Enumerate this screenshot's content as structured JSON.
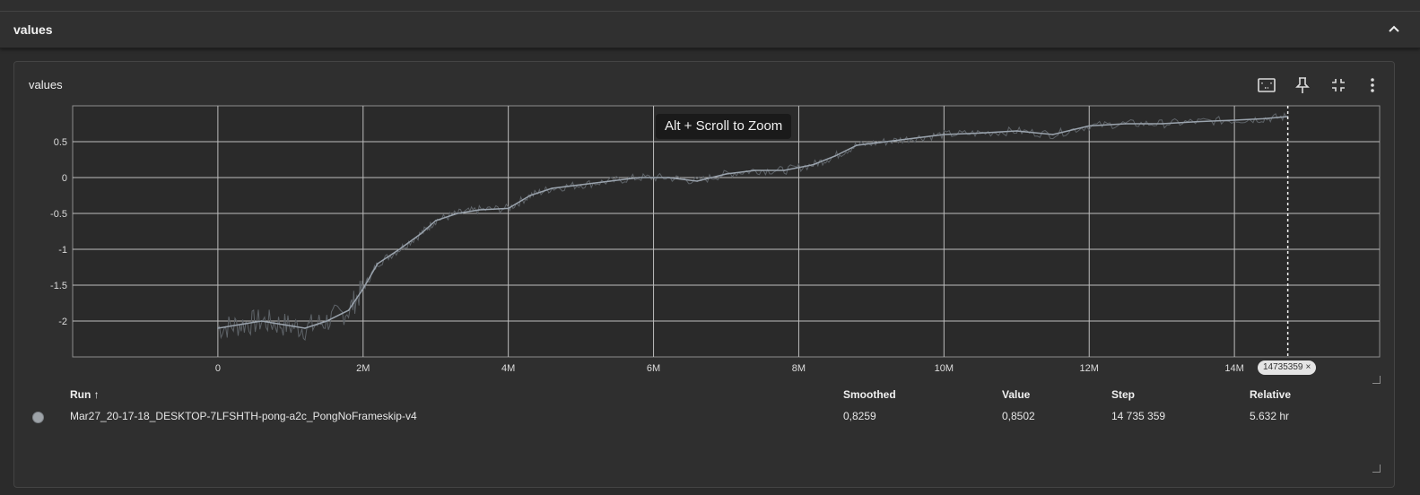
{
  "section": {
    "title": "values",
    "collapse_icon": "chevron-up-icon"
  },
  "card": {
    "title": "values",
    "toolbar": [
      {
        "name": "fit-domain-icon"
      },
      {
        "name": "pin-icon"
      },
      {
        "name": "collapse-icon"
      },
      {
        "name": "more-vert-icon"
      }
    ],
    "tooltip": "Alt + Scroll to Zoom",
    "step_chip": "14735359",
    "step_chip_close": "×"
  },
  "chart_data": {
    "type": "line",
    "title": "values",
    "xlabel": "",
    "ylabel": "",
    "xlim": [
      -2000000,
      16000000
    ],
    "ylim": [
      -2.5,
      1.0
    ],
    "x_ticks": [
      0,
      2000000,
      4000000,
      6000000,
      8000000,
      10000000,
      12000000,
      14000000
    ],
    "x_tick_labels": [
      "0",
      "2M",
      "4M",
      "6M",
      "8M",
      "10M",
      "12M",
      "14M"
    ],
    "y_ticks": [
      -2,
      -1.5,
      -1,
      -0.5,
      0,
      0.5
    ],
    "y_tick_labels": [
      "-2",
      "-1.5",
      "-1",
      "-0.5",
      "0",
      "0.5"
    ],
    "grid": true,
    "cursor_step": 14735359,
    "series": [
      {
        "color": "#9aa3ad",
        "x": [
          0,
          300000,
          600000,
          900000,
          1200000,
          1500000,
          1800000,
          2000000,
          2200000,
          2500000,
          2800000,
          3000000,
          3300000,
          3600000,
          4000000,
          4300000,
          4600000,
          5000000,
          5400000,
          5800000,
          6200000,
          6600000,
          7000000,
          7400000,
          7800000,
          8200000,
          8500000,
          8800000,
          9200000,
          9600000,
          10000000,
          10500000,
          11000000,
          11500000,
          12000000,
          12500000,
          13000000,
          13500000,
          14000000,
          14400000,
          14735359
        ],
        "y": [
          -2.1,
          -2.05,
          -2.0,
          -2.05,
          -2.1,
          -2.0,
          -1.85,
          -1.55,
          -1.2,
          -1.0,
          -0.78,
          -0.6,
          -0.5,
          -0.45,
          -0.43,
          -0.25,
          -0.15,
          -0.1,
          -0.05,
          0.0,
          0.0,
          -0.05,
          0.05,
          0.1,
          0.1,
          0.18,
          0.3,
          0.45,
          0.5,
          0.55,
          0.6,
          0.62,
          0.65,
          0.6,
          0.72,
          0.75,
          0.75,
          0.78,
          0.8,
          0.82,
          0.85
        ]
      }
    ]
  },
  "table": {
    "headers": {
      "run": "Run ↑",
      "smoothed": "Smoothed",
      "value": "Value",
      "step": "Step",
      "relative": "Relative"
    },
    "rows": [
      {
        "run": "Mar27_20-17-18_DESKTOP-7LFSHTH-pong-a2c_PongNoFrameskip-v4",
        "smoothed": "0,8259",
        "value": "0,8502",
        "step": "14 735 359",
        "relative": "5.632 hr"
      }
    ]
  }
}
